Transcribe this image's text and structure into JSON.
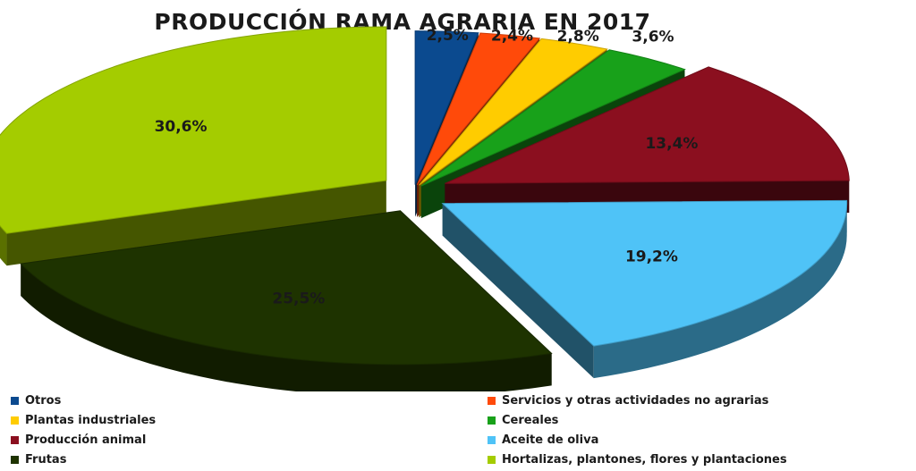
{
  "chart_data": {
    "type": "pie",
    "title": "PRODUCCIÓN RAMA AGRARIA EN 2017",
    "slices": [
      {
        "name": "Otros",
        "value": 2.5,
        "label": "2,5%",
        "color": "#0b4a8f"
      },
      {
        "name": "Servicios y otras actividades no agrarias",
        "value": 2.4,
        "label": "2,4%",
        "color": "#ff4a0a"
      },
      {
        "name": "Plantas industriales",
        "value": 2.8,
        "label": "2,8%",
        "color": "#ffcc00"
      },
      {
        "name": "Cereales",
        "value": 3.6,
        "label": "3,6%",
        "color": "#18a11a"
      },
      {
        "name": "Producción animal",
        "value": 13.4,
        "label": "13,4%",
        "color": "#8b0f1f"
      },
      {
        "name": "Aceite de oliva",
        "value": 19.2,
        "label": "19,2%",
        "color": "#4fc3f7"
      },
      {
        "name": "Frutas",
        "value": 25.5,
        "label": "25,5%",
        "color": "#1e3300"
      },
      {
        "name": "Hortalizas, plantones, flores y plantaciones",
        "value": 30.6,
        "label": "30,6%",
        "color": "#a4cc00"
      }
    ],
    "legend_position": "bottom"
  }
}
